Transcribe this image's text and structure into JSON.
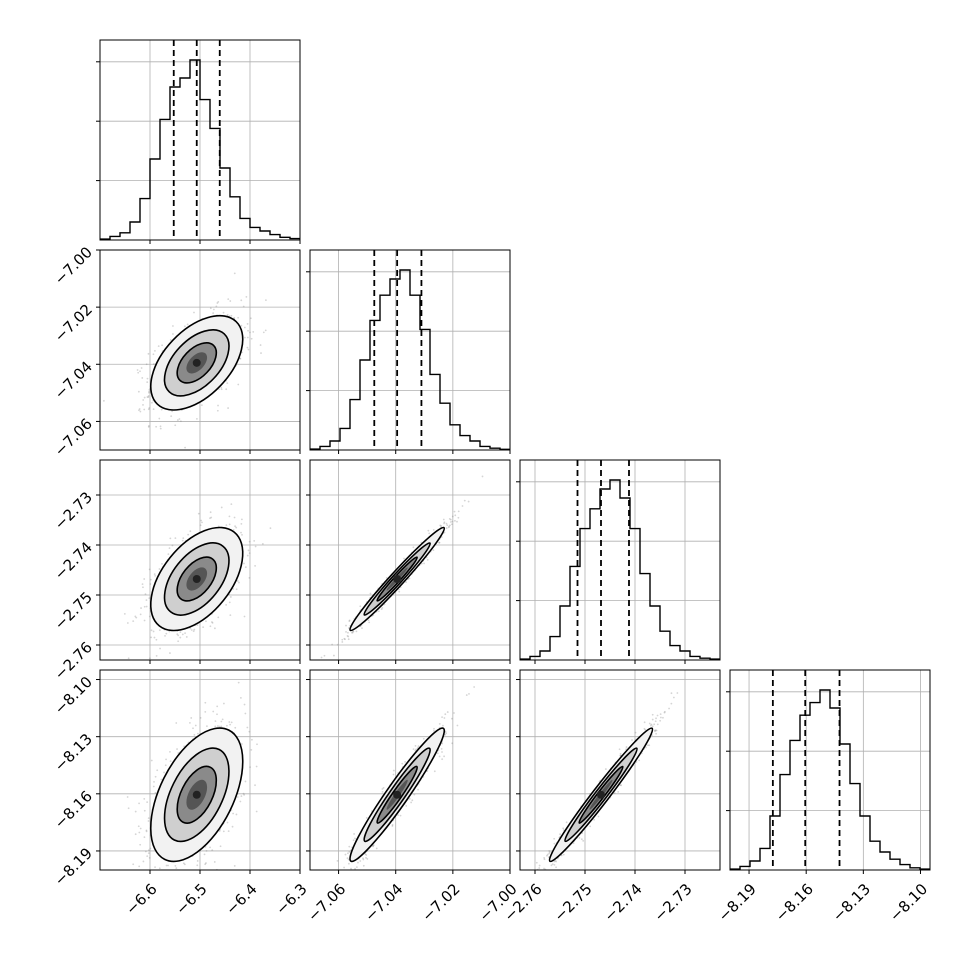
{
  "chart_data": {
    "type": "corner",
    "title": "",
    "variables": [
      {
        "range": [
          -6.7,
          -6.3
        ],
        "ticks": [
          -6.6,
          -6.5,
          -6.4,
          -6.3
        ],
        "tick_labels": [
          "−6.6",
          "−6.5",
          "−6.4",
          "−6.3"
        ],
        "quantiles": [
          -6.5525,
          -6.5065,
          -6.4605
        ],
        "histogram": [
          0.005,
          0.02,
          0.04,
          0.1,
          0.23,
          0.45,
          0.67,
          0.85,
          0.9,
          1.0,
          0.78,
          0.62,
          0.4,
          0.24,
          0.12,
          0.07,
          0.05,
          0.03,
          0.015,
          0.008
        ]
      },
      {
        "range": [
          -7.07,
          -7.0
        ],
        "ticks": [
          -7.06,
          -7.04,
          -7.02,
          -7.0
        ],
        "tick_labels": [
          "−7.06",
          "−7.04",
          "−7.02",
          "−7.00"
        ],
        "quantiles": [
          -7.0475,
          -7.0395,
          -7.031
        ],
        "histogram": [
          0.005,
          0.02,
          0.05,
          0.12,
          0.28,
          0.5,
          0.72,
          0.86,
          0.95,
          1.0,
          0.86,
          0.67,
          0.42,
          0.26,
          0.14,
          0.08,
          0.05,
          0.02,
          0.01,
          0.004
        ]
      },
      {
        "range": [
          -2.763,
          -2.723
        ],
        "ticks": [
          -2.76,
          -2.75,
          -2.74,
          -2.73
        ],
        "tick_labels": [
          "−2.76",
          "−2.75",
          "−2.74",
          "−2.73"
        ],
        "quantiles": [
          -2.7515,
          -2.7468,
          -2.7412
        ],
        "histogram": [
          0.005,
          0.02,
          0.05,
          0.13,
          0.3,
          0.52,
          0.73,
          0.84,
          0.95,
          1.0,
          0.9,
          0.73,
          0.48,
          0.3,
          0.16,
          0.08,
          0.05,
          0.02,
          0.01,
          0.005
        ]
      },
      {
        "range": [
          -8.2,
          -8.095
        ],
        "ticks": [
          -8.19,
          -8.16,
          -8.13,
          -8.1
        ],
        "tick_labels": [
          "−8.19",
          "−8.16",
          "−8.13",
          "−8.10"
        ],
        "quantiles": [
          -8.1775,
          -8.1605,
          -8.1425
        ],
        "histogram": [
          0.005,
          0.02,
          0.05,
          0.12,
          0.3,
          0.53,
          0.72,
          0.86,
          0.93,
          1.0,
          0.9,
          0.7,
          0.48,
          0.3,
          0.16,
          0.1,
          0.06,
          0.03,
          0.012,
          0.005
        ]
      }
    ],
    "correlations": [
      [
        1,
        0.5,
        0.5,
        0.5
      ],
      [
        0.5,
        1,
        0.98,
        0.96
      ],
      [
        0.5,
        0.98,
        1,
        0.98
      ],
      [
        0.5,
        0.96,
        0.98,
        1
      ]
    ],
    "grid": true,
    "contours": true,
    "xlabel": "",
    "ylabel": ""
  },
  "colors": {
    "line": "#000000",
    "grid": "#b0b0b0",
    "scatter": "#888888",
    "density_mid": "#8a8a8a",
    "density_high": "#222222"
  }
}
